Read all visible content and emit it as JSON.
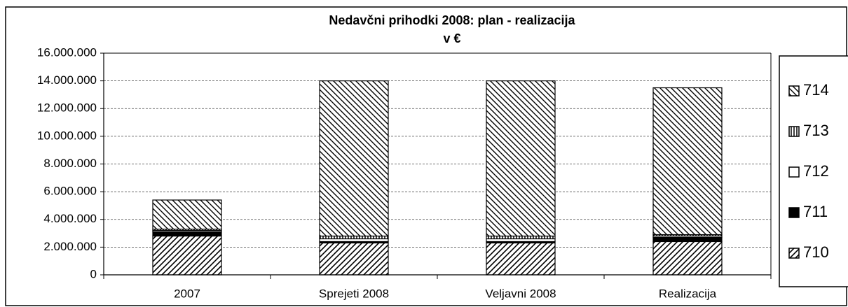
{
  "chart_data": {
    "type": "stacked-bar",
    "title": "Nedavčni prihodki 2008: plan - realizacija",
    "subtitle": "v €",
    "categories": [
      "2007",
      "Sprejeti 2008",
      "Veljavni 2008",
      "Realizacija"
    ],
    "series": [
      {
        "name": "710",
        "color": "#000000",
        "pattern": "diagonal-up",
        "values": [
          2800000,
          2300000,
          2300000,
          2400000
        ]
      },
      {
        "name": "711",
        "color": "#000000",
        "pattern": "solid",
        "values": [
          300000,
          100000,
          100000,
          300000
        ]
      },
      {
        "name": "712",
        "color": "#000000",
        "pattern": "none",
        "values": [
          100000,
          200000,
          200000,
          100000
        ]
      },
      {
        "name": "713",
        "color": "#000000",
        "pattern": "vertical",
        "values": [
          100000,
          200000,
          200000,
          100000
        ]
      },
      {
        "name": "714",
        "color": "#000000",
        "pattern": "diagonal-down",
        "values": [
          2100000,
          11200000,
          11200000,
          10600000
        ]
      }
    ],
    "ylim": [
      0,
      16000000
    ],
    "yticks": [
      0,
      {
        "value": 2000000,
        "label": "2.000.000"
      },
      {
        "value": 4000000,
        "label": "4.000.000"
      },
      {
        "value": 6000000,
        "label": "6.000.000"
      },
      {
        "value": 8000000,
        "label": "8.000.000"
      },
      {
        "value": 10000000,
        "label": "10.000.000"
      },
      {
        "value": 12000000,
        "label": "12.000.000"
      },
      {
        "value": 14000000,
        "label": "14.000.000"
      },
      {
        "value": 16000000,
        "label": "16.000.000"
      }
    ],
    "grid": true,
    "legend": "right"
  }
}
